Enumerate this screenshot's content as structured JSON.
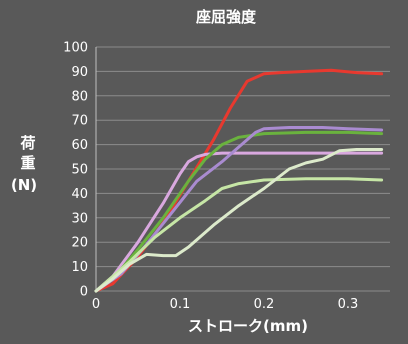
{
  "chart_data": {
    "type": "line",
    "title": "座屈強度",
    "xlabel": "ストローク(mm)",
    "ylabel_chars": [
      "荷",
      "重",
      "(N)"
    ],
    "xlim": [
      0,
      0.35
    ],
    "ylim": [
      0,
      100
    ],
    "x_ticks": [
      "0",
      "0.1",
      "0.2",
      "0.3"
    ],
    "x_tick_values": [
      0,
      0.1,
      0.2,
      0.3
    ],
    "y_ticks": [
      "0",
      "10",
      "20",
      "30",
      "40",
      "50",
      "60",
      "70",
      "80",
      "90",
      "100"
    ],
    "y_tick_values": [
      0,
      10,
      20,
      30,
      40,
      50,
      60,
      70,
      80,
      90,
      100
    ],
    "grid": true,
    "legend": "none",
    "series": [
      {
        "color": "#e8392f",
        "x": [
          0,
          0.02,
          0.05,
          0.08,
          0.11,
          0.14,
          0.16,
          0.18,
          0.2,
          0.22,
          0.25,
          0.28,
          0.31,
          0.34
        ],
        "y": [
          0,
          3,
          14,
          28,
          45,
          62,
          75,
          86,
          89,
          89.5,
          90,
          90.5,
          89.5,
          89
        ]
      },
      {
        "color": "#d9a8df",
        "x": [
          0,
          0.02,
          0.05,
          0.08,
          0.1,
          0.11,
          0.12,
          0.13,
          0.15,
          0.2,
          0.25,
          0.3,
          0.34
        ],
        "y": [
          0,
          6,
          20,
          36,
          48,
          53,
          55,
          56,
          56.5,
          56.5,
          56.5,
          56.5,
          56.5
        ]
      },
      {
        "color": "#6ab23e",
        "x": [
          0,
          0.02,
          0.05,
          0.08,
          0.11,
          0.13,
          0.15,
          0.17,
          0.2,
          0.25,
          0.3,
          0.34
        ],
        "y": [
          0,
          5,
          17,
          30,
          45,
          54,
          60,
          63,
          64.5,
          65,
          65,
          64.5
        ]
      },
      {
        "color": "#a98bd0",
        "x": [
          0,
          0.03,
          0.06,
          0.09,
          0.12,
          0.15,
          0.17,
          0.19,
          0.2,
          0.23,
          0.27,
          0.3,
          0.34
        ],
        "y": [
          0,
          7,
          19,
          32,
          45,
          53,
          59,
          65,
          66.5,
          67,
          67,
          66.5,
          66
        ]
      },
      {
        "color": "#c6e6a6",
        "x": [
          0,
          0.02,
          0.04,
          0.07,
          0.1,
          0.13,
          0.15,
          0.17,
          0.2,
          0.25,
          0.3,
          0.34
        ],
        "y": [
          0,
          6,
          12,
          22,
          30,
          37,
          42,
          44,
          45.5,
          46,
          46,
          45.5
        ]
      },
      {
        "color": "#dceacb",
        "x": [
          0,
          0.02,
          0.04,
          0.06,
          0.08,
          0.095,
          0.11,
          0.14,
          0.17,
          0.2,
          0.23,
          0.25,
          0.27,
          0.29,
          0.31,
          0.34
        ],
        "y": [
          0,
          5,
          11,
          15,
          14.5,
          14.5,
          18,
          27,
          35,
          42,
          50,
          52.5,
          54,
          57.5,
          58,
          58
        ]
      }
    ]
  }
}
